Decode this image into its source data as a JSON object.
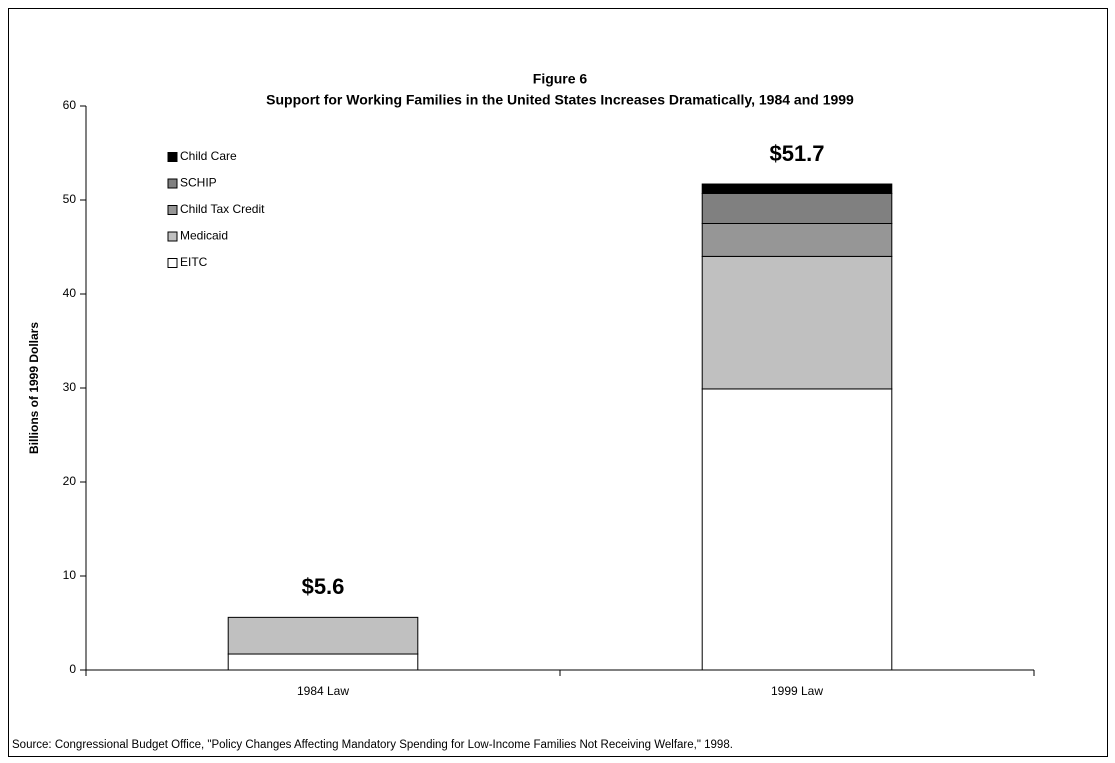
{
  "chart_data": {
    "type": "stacked_bar",
    "title": "Figure 6",
    "subtitle": "Support for Working Families in the United States Increases Dramatically, 1984 and 1999",
    "y_label": "Billions of 1999 Dollars",
    "source": "Source:  Congressional Budget Office, \"Policy Changes Affecting Mandatory Spending for Low-Income Families Not Receiving Welfare,\" 1998.",
    "categories": [
      "1984 Law",
      "1999 Law"
    ],
    "series": [
      {
        "name": "EITC",
        "color": "#ffffff",
        "values": [
          1.7,
          29.9
        ]
      },
      {
        "name": "Medicaid",
        "color": "#c0c0c0",
        "values": [
          3.9,
          14.1
        ]
      },
      {
        "name": "Child Tax Credit",
        "color": "#969696",
        "values": [
          0,
          3.5
        ]
      },
      {
        "name": "SCHIP",
        "color": "#808080",
        "values": [
          0,
          3.2
        ]
      },
      {
        "name": "Child Care",
        "color": "#000000",
        "values": [
          0,
          1.0
        ]
      }
    ],
    "totals": [
      5.6,
      51.7
    ],
    "total_labels": [
      "$5.6",
      "$51.7"
    ],
    "ylim": [
      0,
      60
    ],
    "yticks": [
      0,
      10,
      20,
      30,
      40,
      50,
      60
    ],
    "grid": false,
    "legend": "top-left"
  }
}
